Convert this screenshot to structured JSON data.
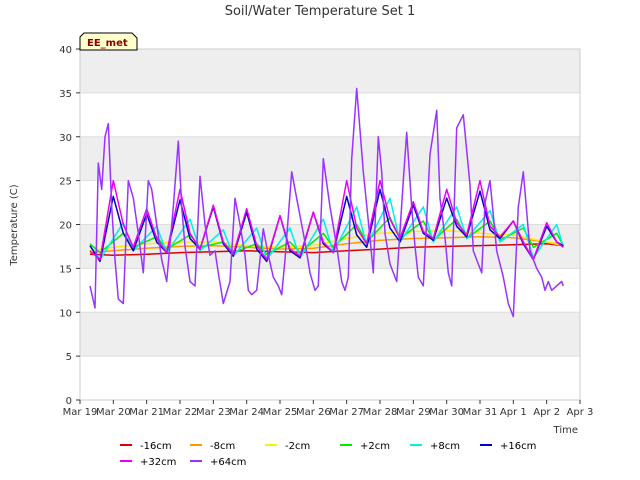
{
  "chart_data": {
    "type": "line",
    "title": "Soil/Water Temperature Set 1",
    "xlabel": "Time",
    "ylabel": "Temperature (C)",
    "ylim": [
      0,
      40
    ],
    "yticks": [
      0,
      5,
      10,
      15,
      20,
      25,
      30,
      35,
      40
    ],
    "xlim": [
      0,
      15
    ],
    "xticks": [
      0,
      1,
      2,
      3,
      4,
      5,
      6,
      7,
      8,
      9,
      10,
      11,
      12,
      13,
      14,
      15
    ],
    "xtick_labels": [
      "Mar 19",
      "Mar 20",
      "Mar 21",
      "Mar 22",
      "Mar 23",
      "Mar 24",
      "Mar 25",
      "Mar 26",
      "Mar 27",
      "Mar 28",
      "Mar 29",
      "Mar 30",
      "Mar 31",
      "Apr 1",
      "Apr 2",
      "Apr 3"
    ],
    "grid": true,
    "legend_position": "bottom",
    "badge": "EE_met",
    "series": [
      {
        "name": "-16cm",
        "color": "#dd0000",
        "x": [
          0.3,
          1,
          2,
          3,
          4,
          5,
          6,
          7,
          8,
          9,
          10,
          11,
          12,
          13,
          14,
          14.5
        ],
        "y": [
          16.6,
          16.5,
          16.6,
          16.8,
          16.9,
          17.0,
          16.9,
          16.8,
          17.0,
          17.2,
          17.4,
          17.5,
          17.6,
          17.7,
          17.8,
          17.6
        ]
      },
      {
        "name": "-8cm",
        "color": "#ff9900",
        "x": [
          0.3,
          1,
          2,
          3,
          4,
          5,
          6,
          7,
          8,
          9,
          10,
          11,
          12,
          13,
          14,
          14.5
        ],
        "y": [
          16.8,
          17.0,
          17.3,
          17.5,
          17.6,
          17.4,
          17.2,
          17.3,
          17.8,
          18.2,
          18.4,
          18.5,
          18.6,
          18.5,
          18.0,
          17.7
        ]
      },
      {
        "name": "-2cm",
        "color": "#ffee00",
        "x": [
          0.3,
          1,
          2,
          3,
          4,
          5,
          6,
          7,
          8,
          9,
          10,
          11,
          12,
          13,
          14,
          14.5
        ],
        "y": [
          17.0,
          17.4,
          17.8,
          18.0,
          18.0,
          17.6,
          17.4,
          17.6,
          18.4,
          19.0,
          19.2,
          19.3,
          19.0,
          18.8,
          18.0,
          17.6
        ]
      },
      {
        "name": "+2cm",
        "color": "#00ee00",
        "x": [
          0.3,
          0.6,
          1.3,
          1.6,
          2.3,
          2.6,
          3.3,
          3.6,
          4.3,
          4.6,
          5.3,
          5.6,
          6.3,
          6.6,
          7.3,
          7.6,
          8.3,
          8.6,
          9.3,
          9.6,
          10.3,
          10.6,
          11.3,
          11.6,
          12.3,
          12.6,
          13.3,
          13.6,
          14.3,
          14.5
        ],
        "y": [
          17.8,
          16.8,
          19.0,
          17.4,
          18.6,
          17.2,
          18.8,
          17.4,
          18.0,
          16.8,
          17.8,
          16.6,
          18.0,
          16.8,
          19.0,
          17.4,
          20.0,
          18.0,
          20.8,
          18.4,
          20.4,
          18.2,
          20.6,
          18.4,
          20.4,
          18.2,
          19.6,
          17.4,
          19.0,
          17.6
        ]
      },
      {
        "name": "+8cm",
        "color": "#00eeee",
        "x": [
          0.3,
          0.6,
          1.3,
          1.6,
          2.3,
          2.6,
          3.3,
          3.6,
          4.3,
          4.6,
          5.3,
          5.6,
          6.3,
          6.6,
          7.3,
          7.6,
          8.3,
          8.6,
          9.3,
          9.6,
          10.3,
          10.6,
          11.3,
          11.6,
          12.3,
          12.6,
          13.3,
          13.6,
          14.3,
          14.5
        ],
        "y": [
          17.6,
          16.0,
          20.2,
          17.0,
          19.8,
          16.8,
          20.6,
          17.0,
          19.4,
          16.4,
          19.6,
          16.0,
          19.6,
          16.2,
          20.6,
          16.8,
          22.0,
          17.6,
          23.0,
          18.0,
          22.0,
          18.0,
          22.0,
          18.4,
          21.6,
          18.0,
          20.0,
          16.2,
          20.0,
          17.4
        ]
      },
      {
        "name": "+16cm",
        "color": "#0000cc",
        "x": [
          0.3,
          0.6,
          1.0,
          1.3,
          1.6,
          2.0,
          2.3,
          2.6,
          3.0,
          3.3,
          3.6,
          4.0,
          4.3,
          4.6,
          5.0,
          5.3,
          5.6,
          6.0,
          6.3,
          6.6,
          7.0,
          7.3,
          7.6,
          8.0,
          8.3,
          8.6,
          9.0,
          9.3,
          9.6,
          10.0,
          10.3,
          10.6,
          11.0,
          11.3,
          11.6,
          12.0,
          12.3,
          12.6,
          13.0,
          13.3,
          13.6,
          14.0,
          14.3,
          14.5
        ],
        "y": [
          17.6,
          15.8,
          23.2,
          19.0,
          17.0,
          21.2,
          18.0,
          16.8,
          22.8,
          18.4,
          17.2,
          22.0,
          17.8,
          16.4,
          21.4,
          17.2,
          15.8,
          21.0,
          17.0,
          16.2,
          21.4,
          17.8,
          16.8,
          23.2,
          18.8,
          17.4,
          24.0,
          19.6,
          18.0,
          22.2,
          19.0,
          18.2,
          23.0,
          19.8,
          18.6,
          23.8,
          19.4,
          18.4,
          20.4,
          17.8,
          16.0,
          19.8,
          18.0,
          17.6
        ]
      },
      {
        "name": "+32cm",
        "color": "#ee00ee",
        "x": [
          0.3,
          0.6,
          1.0,
          1.3,
          1.6,
          2.0,
          2.3,
          2.6,
          3.0,
          3.3,
          3.6,
          4.0,
          4.3,
          4.6,
          5.0,
          5.3,
          5.6,
          6.0,
          6.3,
          6.6,
          7.0,
          7.3,
          7.6,
          8.0,
          8.3,
          8.6,
          9.0,
          9.3,
          9.6,
          10.0,
          10.3,
          10.6,
          11.0,
          11.3,
          11.6,
          12.0,
          12.3,
          12.6,
          13.0,
          13.3,
          13.6,
          14.0,
          14.3,
          14.5
        ],
        "y": [
          17.0,
          16.0,
          25.0,
          20.0,
          17.4,
          21.8,
          18.4,
          16.8,
          24.0,
          19.0,
          17.2,
          22.2,
          18.0,
          16.6,
          21.8,
          17.6,
          16.0,
          21.0,
          17.2,
          16.4,
          21.4,
          18.0,
          16.8,
          25.0,
          19.6,
          17.8,
          25.0,
          20.6,
          18.4,
          22.6,
          19.2,
          18.4,
          24.0,
          20.2,
          18.8,
          25.0,
          19.8,
          18.6,
          20.4,
          18.0,
          16.0,
          20.2,
          18.0,
          17.4
        ]
      },
      {
        "name": "+64cm",
        "color": "#9933ff",
        "x": [
          0.3,
          0.45,
          0.55,
          0.65,
          0.75,
          0.85,
          0.95,
          1.05,
          1.15,
          1.3,
          1.45,
          1.6,
          1.75,
          1.9,
          2.05,
          2.15,
          2.3,
          2.45,
          2.6,
          2.8,
          2.95,
          3.05,
          3.15,
          3.3,
          3.45,
          3.6,
          3.75,
          3.9,
          4.05,
          4.15,
          4.3,
          4.5,
          4.65,
          4.8,
          4.95,
          5.05,
          5.15,
          5.3,
          5.5,
          5.65,
          5.8,
          5.95,
          6.05,
          6.15,
          6.35,
          6.55,
          6.75,
          6.9,
          7.05,
          7.15,
          7.3,
          7.5,
          7.7,
          7.85,
          7.95,
          8.05,
          8.15,
          8.3,
          8.5,
          8.7,
          8.8,
          8.95,
          9.05,
          9.15,
          9.3,
          9.5,
          9.7,
          9.8,
          9.95,
          10.05,
          10.15,
          10.3,
          10.5,
          10.7,
          10.8,
          10.95,
          11.05,
          11.15,
          11.3,
          11.5,
          11.7,
          11.8,
          11.95,
          12.05,
          12.15,
          12.3,
          12.5,
          12.7,
          12.85,
          13.0,
          13.15,
          13.3,
          13.5,
          13.7,
          13.85,
          13.95,
          14.05,
          14.15,
          14.3,
          14.45,
          14.5
        ],
        "y": [
          13.0,
          10.5,
          27.0,
          24.0,
          30.0,
          31.5,
          22.0,
          16.0,
          11.5,
          11.0,
          25.0,
          23.0,
          19.0,
          14.5,
          25.0,
          24.0,
          20.0,
          16.0,
          13.5,
          22.0,
          29.5,
          22.0,
          17.5,
          13.5,
          13.0,
          25.5,
          20.0,
          16.5,
          17.0,
          14.5,
          11.0,
          13.5,
          23.0,
          20.0,
          16.5,
          12.5,
          12.0,
          12.5,
          19.5,
          16.5,
          14.0,
          13.0,
          12.0,
          16.0,
          26.0,
          22.0,
          18.0,
          14.5,
          12.5,
          13.0,
          27.5,
          22.0,
          17.5,
          13.5,
          12.5,
          14.0,
          27.5,
          35.5,
          26.0,
          18.5,
          14.5,
          30.0,
          26.0,
          19.0,
          15.5,
          13.5,
          25.0,
          30.5,
          22.0,
          17.5,
          14.0,
          13.0,
          28.0,
          33.0,
          23.0,
          18.5,
          14.5,
          13.0,
          31.0,
          32.5,
          24.5,
          17.0,
          15.5,
          14.5,
          22.5,
          25.0,
          17.0,
          14.0,
          11.0,
          9.5,
          22.0,
          26.0,
          17.0,
          15.0,
          14.0,
          12.5,
          13.5,
          12.5,
          13.0,
          13.5,
          13.0
        ]
      }
    ]
  }
}
